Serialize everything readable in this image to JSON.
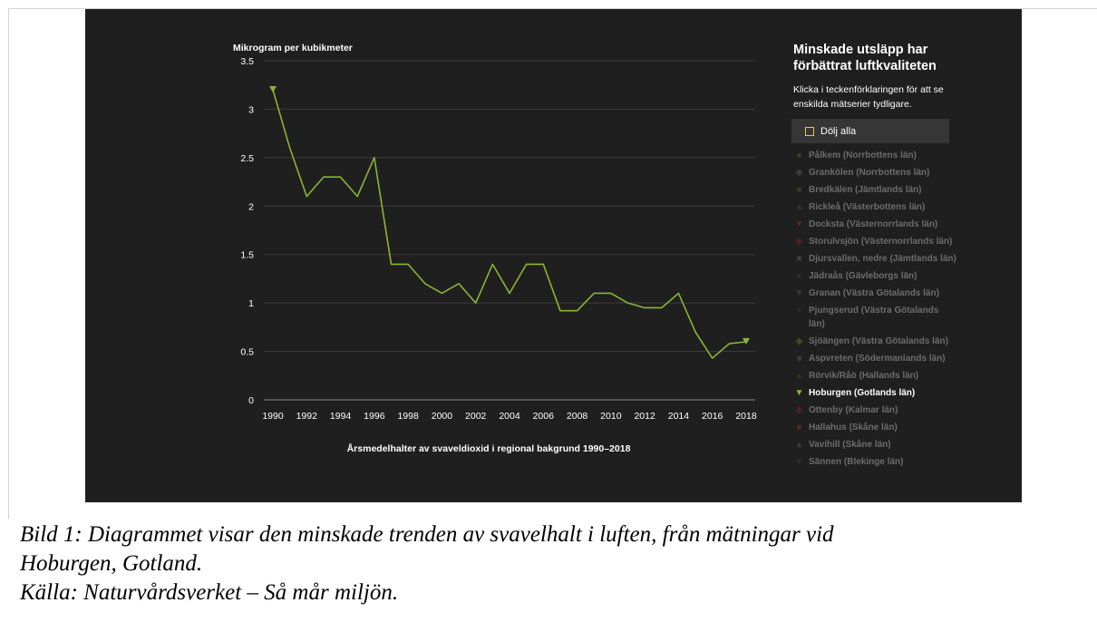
{
  "chart_data": {
    "type": "line",
    "title": "Årsmedelhalter av svaveldioxid i regional bakgrund 1990–2018",
    "ylabel": "Mikrogram per kubikmeter",
    "xlabel": "",
    "ylim": [
      0,
      3.5
    ],
    "yticks": [
      "0",
      "0.5",
      "1",
      "1.5",
      "2",
      "2.5",
      "3",
      "3.5"
    ],
    "xticks": [
      "1990",
      "1992",
      "1994",
      "1996",
      "1998",
      "2000",
      "2002",
      "2004",
      "2006",
      "2008",
      "2010",
      "2012",
      "2014",
      "2016",
      "2018"
    ],
    "grid": true,
    "series": [
      {
        "name": "Hoburgen (Gotlands län)",
        "color": "#8ab534",
        "x": [
          1990,
          1991,
          1992,
          1993,
          1994,
          1995,
          1996,
          1997,
          1998,
          1999,
          2000,
          2001,
          2002,
          2003,
          2004,
          2005,
          2006,
          2007,
          2008,
          2009,
          2010,
          2011,
          2012,
          2013,
          2014,
          2015,
          2016,
          2017,
          2018
        ],
        "values": [
          3.2,
          2.6,
          2.1,
          2.3,
          2.3,
          2.1,
          2.5,
          1.4,
          1.4,
          1.2,
          1.1,
          1.2,
          1.0,
          1.4,
          1.1,
          1.4,
          1.4,
          0.92,
          0.92,
          1.1,
          1.1,
          1.0,
          0.95,
          0.95,
          1.1,
          0.7,
          0.43,
          0.58,
          0.6
        ]
      }
    ]
  },
  "legend": {
    "title": "Minskade utsläpp har förbättrat luftkvaliteten",
    "hint": "Klicka i teckenförklaringen för att se enskilda mätserier tydligare.",
    "toggle_label": "Dölj alla",
    "items": [
      {
        "label": "Pålkem (Norrbottens län)",
        "marker": "●",
        "marker_color": "#3a4a25",
        "active": false
      },
      {
        "label": "Grankölen (Norrbottens län)",
        "marker": "◆",
        "marker_color": "#3b3b3b",
        "active": false
      },
      {
        "label": "Bredkälen (Jämtlands län)",
        "marker": "■",
        "marker_color": "#353c28",
        "active": false
      },
      {
        "label": "Rickleå (Västerbottens län)",
        "marker": "▲",
        "marker_color": "#353535",
        "active": false
      },
      {
        "label": "Docksta (Västernorrlands län)",
        "marker": "▼",
        "marker_color": "#5a2a22",
        "active": false
      },
      {
        "label": "Storulvsjön (Västernorrlands län)",
        "marker": "◆",
        "marker_color": "#4a2323",
        "active": false
      },
      {
        "label": "Djursvallen, nedre (Jämtlands län)",
        "marker": "■",
        "marker_color": "#3f3f3f",
        "active": false
      },
      {
        "label": "Jädraås (Gävleborgs län)",
        "marker": "▲",
        "marker_color": "#2f2f2f",
        "active": false
      },
      {
        "label": "Granan (Västra Götalands län)",
        "marker": "▼",
        "marker_color": "#3a3a3a",
        "active": false
      },
      {
        "label": "Pjungserud (Västra Götalands län)",
        "marker": "●",
        "marker_color": "#1f2c3d",
        "active": false
      },
      {
        "label": "Sjöängen (Västra Götalands län)",
        "marker": "◆",
        "marker_color": "#3a4a25",
        "active": false
      },
      {
        "label": "Aspvreten (Södermanlands län)",
        "marker": "■",
        "marker_color": "#3b3b3b",
        "active": false
      },
      {
        "label": "Rörvik/Råö (Hallands län)",
        "marker": "▲",
        "marker_color": "#2e3522",
        "active": false
      },
      {
        "label": "Hoburgen (Gotlands län)",
        "marker": "▼",
        "marker_color": "#8ab534",
        "active": true
      },
      {
        "label": "Ottenby (Kalmar län)",
        "marker": "◆",
        "marker_color": "#4a2323",
        "active": false
      },
      {
        "label": "Hallahus (Skåne län)",
        "marker": "■",
        "marker_color": "#4a2a22",
        "active": false
      },
      {
        "label": "Vavihill (Skåne län)",
        "marker": "▲",
        "marker_color": "#3a3a3a",
        "active": false
      },
      {
        "label": "Sännen (Blekinge län)",
        "marker": "▼",
        "marker_color": "#2f2f2f",
        "active": false
      }
    ]
  },
  "caption": {
    "line1": "Bild 1: Diagrammet visar den minskade trenden av svavelhalt i luften, från mätningar vid",
    "line2": "Hoburgen, Gotland.",
    "line3": "Källa: Naturvårdsverket – Så mår miljön."
  }
}
